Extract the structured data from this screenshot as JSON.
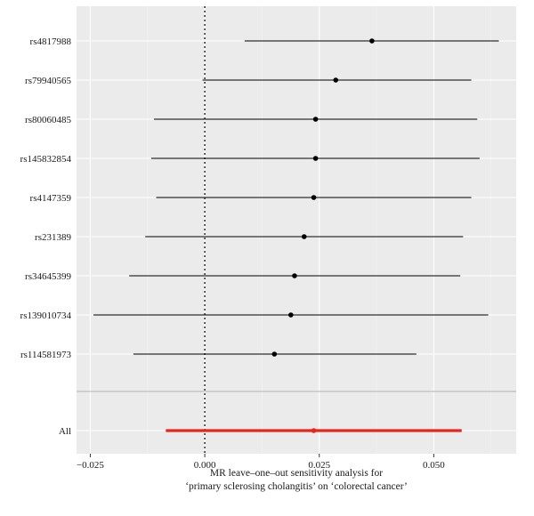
{
  "chart_data": {
    "type": "forest",
    "xlabel_line1": "MR leave–one–out sensitivity analysis for",
    "xlabel_line2": "‘primary sclerosing cholangitis’ on ‘colorectal cancer’",
    "xlim": [
      -0.028,
      0.068
    ],
    "xticks": [
      -0.025,
      0.0,
      0.025,
      0.05
    ],
    "xtick_labels": [
      "−0.025",
      "0.000",
      "0.025",
      "0.050"
    ],
    "reference_line": 0,
    "rows": [
      {
        "label": "rs4817988",
        "estimate": 0.0365,
        "lower": 0.0087,
        "upper": 0.0642
      },
      {
        "label": "rs79940565",
        "estimate": 0.0286,
        "lower": -0.0005,
        "upper": 0.0582
      },
      {
        "label": "rs80060485",
        "estimate": 0.0242,
        "lower": -0.0111,
        "upper": 0.0595
      },
      {
        "label": "rs145832854",
        "estimate": 0.0242,
        "lower": -0.0117,
        "upper": 0.06
      },
      {
        "label": "rs4147359",
        "estimate": 0.0238,
        "lower": -0.0106,
        "upper": 0.0582
      },
      {
        "label": "rs231389",
        "estimate": 0.0217,
        "lower": -0.013,
        "upper": 0.0564
      },
      {
        "label": "rs34645399",
        "estimate": 0.0196,
        "lower": -0.0165,
        "upper": 0.0558
      },
      {
        "label": "rs139010734",
        "estimate": 0.0188,
        "lower": -0.0243,
        "upper": 0.0619
      },
      {
        "label": "rs114581973",
        "estimate": 0.0152,
        "lower": -0.0156,
        "upper": 0.0462
      }
    ],
    "overall": {
      "label": "All",
      "estimate": 0.0238,
      "lower": -0.0085,
      "upper": 0.0561
    },
    "colors": {
      "panel": "#ebebeb",
      "grid": "#ffffff",
      "points": "#000000",
      "overall": "#e8251d"
    },
    "grid": true
  }
}
